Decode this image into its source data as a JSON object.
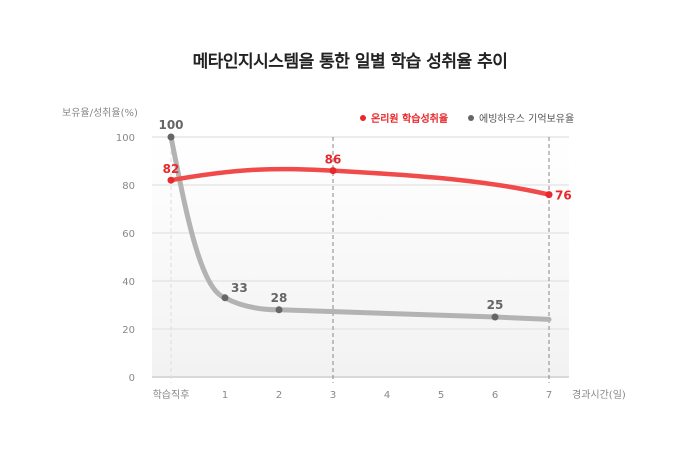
{
  "chart_data": {
    "type": "line",
    "title": "메타인지시스템을 통한 일별 학습 성취율 추이",
    "ylabel": "보유율/성취율(%)",
    "xlabel": "경과시간(일)",
    "categories": [
      "학습직후",
      "1",
      "2",
      "3",
      "4",
      "5",
      "6",
      "7"
    ],
    "yticks": [
      0,
      20,
      40,
      60,
      80,
      100
    ],
    "ylim": [
      0,
      100
    ],
    "grid": true,
    "legend_position": "top-right",
    "series": [
      {
        "name": "온리원 학습성취율",
        "color": "#e8282c",
        "x": [
          "학습직후",
          "3",
          "7"
        ],
        "values": [
          82,
          86,
          76
        ],
        "labels": [
          "82",
          "86",
          "76"
        ]
      },
      {
        "name": "에빙하우스 기억보유율",
        "color": "#666666",
        "x": [
          "학습직후",
          "1",
          "2",
          "6"
        ],
        "values": [
          100,
          33,
          28,
          25
        ],
        "labels": [
          "100",
          "33",
          "28",
          "25"
        ],
        "end_value": 24
      }
    ]
  }
}
